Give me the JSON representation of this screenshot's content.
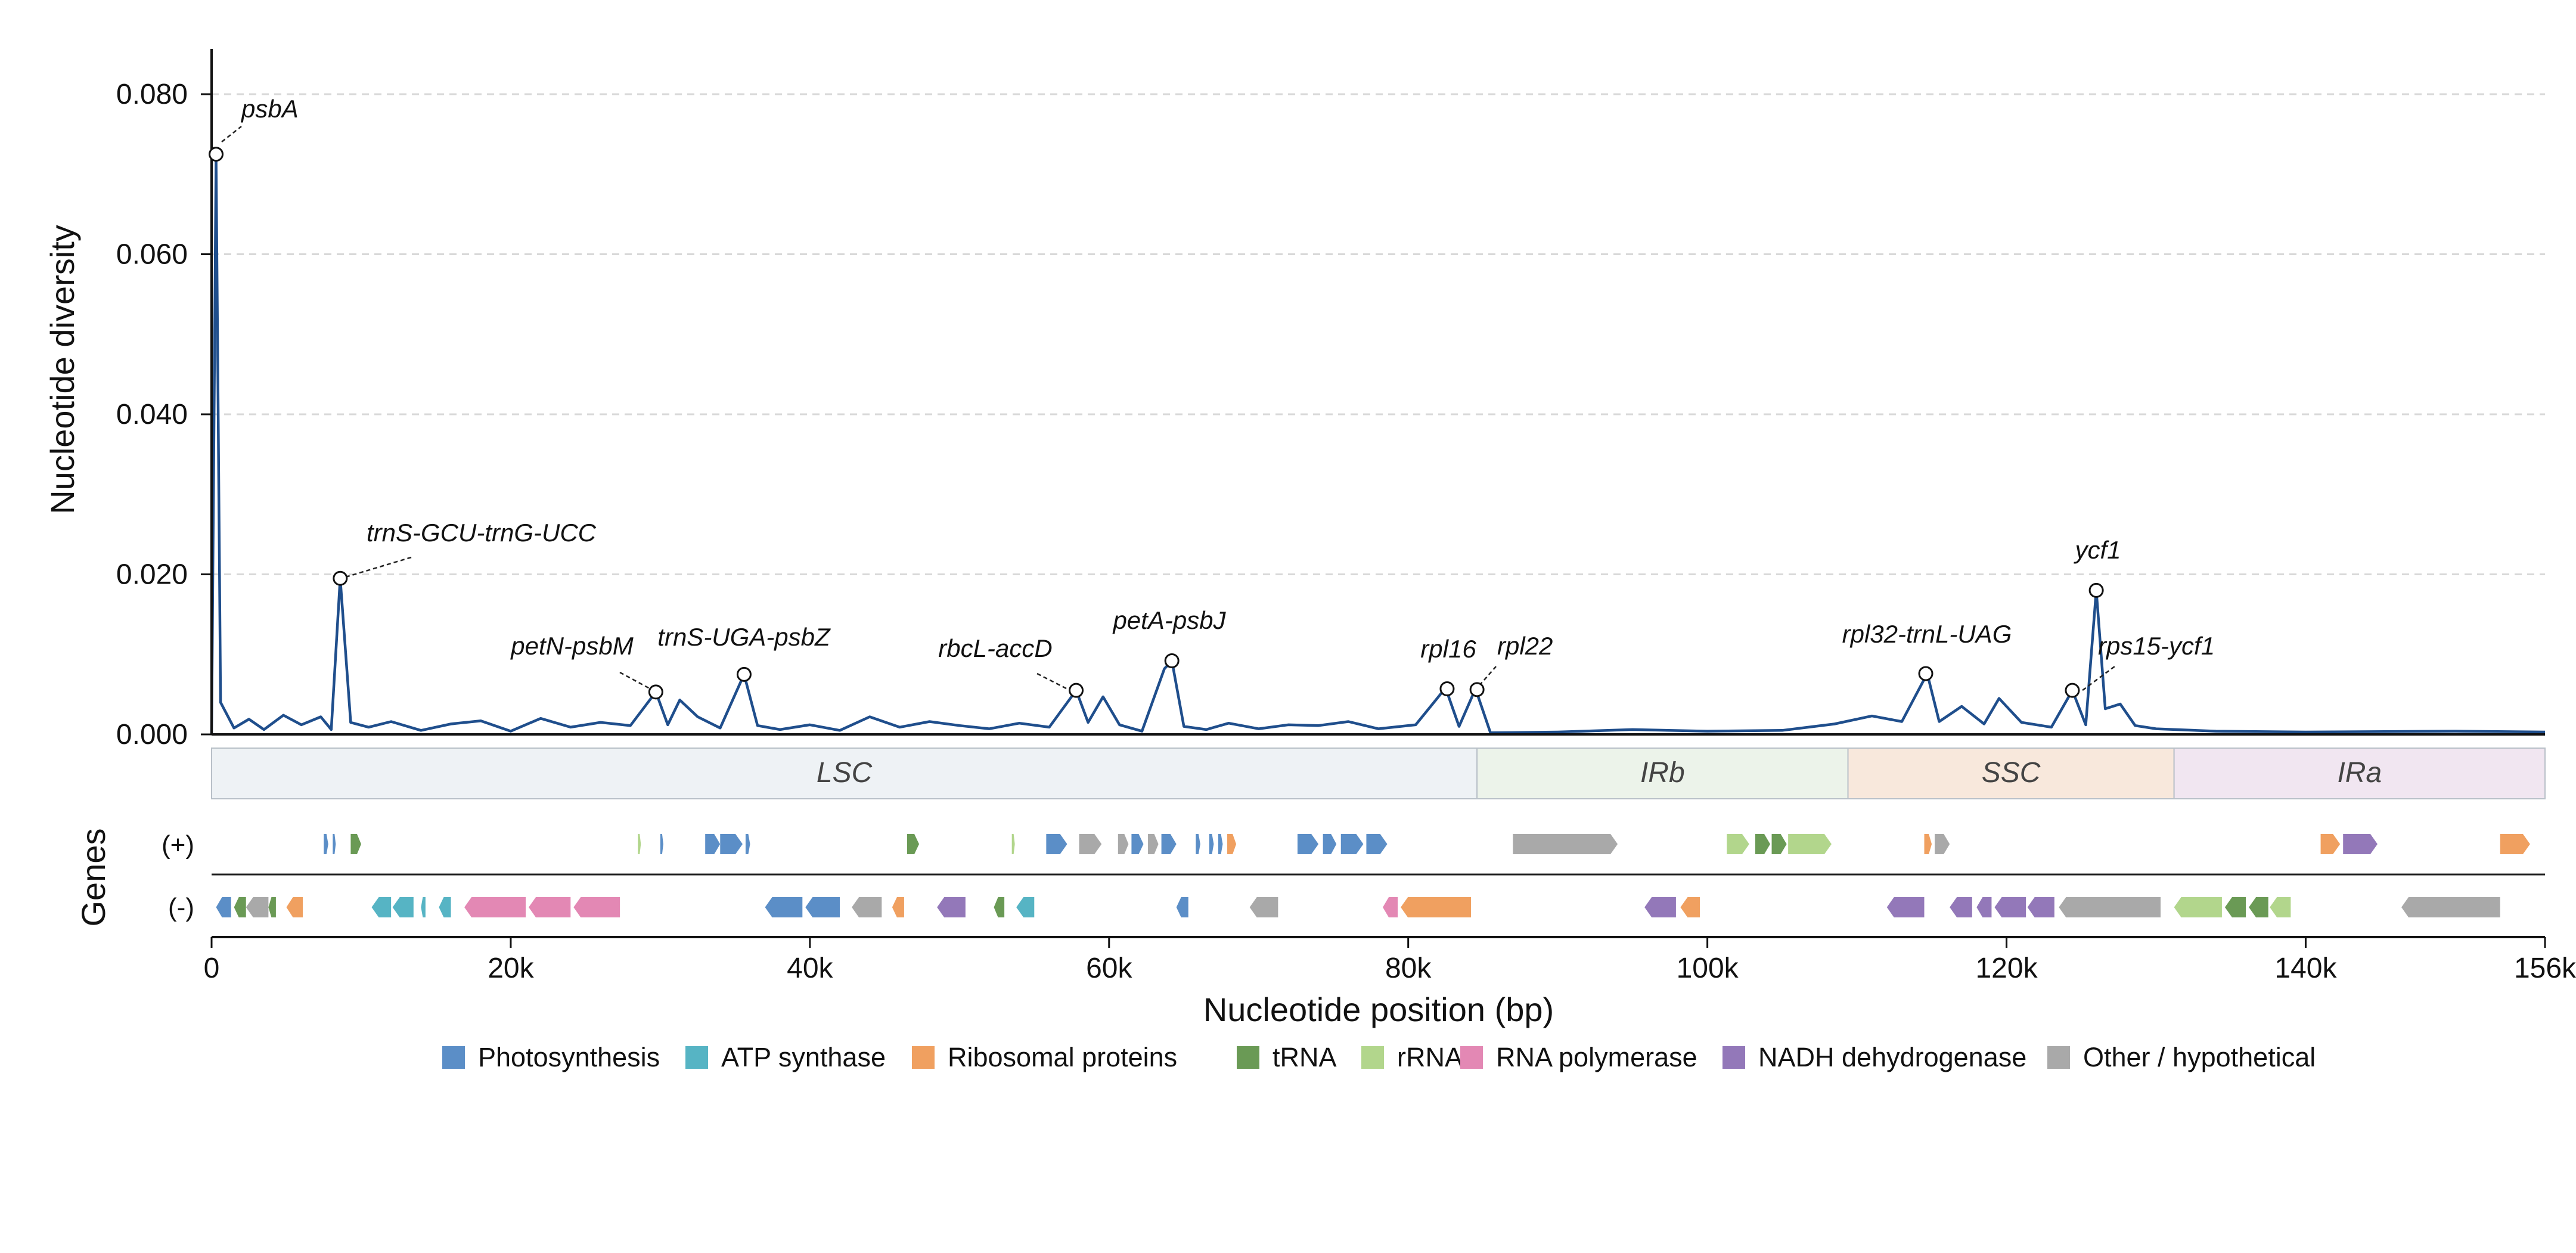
{
  "chart_data": {
    "type": "line",
    "ylabel": "Nucleotide diversity",
    "xlabel": "Nucleotide position (bp)",
    "xlim": [
      0,
      156000
    ],
    "ylim": [
      0,
      0.085
    ],
    "grid": "horizontal dashed",
    "y_ticks": [
      "0.000",
      "0.020",
      "0.040",
      "0.060",
      "0.080"
    ],
    "x_ticks": [
      "0",
      "20k",
      "40k",
      "60k",
      "80k",
      "100k",
      "120k",
      "140k",
      "156k"
    ],
    "x_tick_values": [
      0,
      20000,
      40000,
      60000,
      80000,
      100000,
      120000,
      140000,
      156000
    ],
    "line_color": "#1f4e8c",
    "series_points": [
      [
        0,
        0.0
      ],
      [
        300,
        0.072
      ],
      [
        600,
        0.004
      ],
      [
        1500,
        0.0008
      ],
      [
        2500,
        0.0019
      ],
      [
        3500,
        0.0006
      ],
      [
        4800,
        0.0024
      ],
      [
        6000,
        0.0012
      ],
      [
        7300,
        0.0022
      ],
      [
        8000,
        0.0006
      ],
      [
        8600,
        0.0195
      ],
      [
        9300,
        0.0015
      ],
      [
        10500,
        0.0009
      ],
      [
        12000,
        0.0016
      ],
      [
        14000,
        0.0005
      ],
      [
        16000,
        0.0013
      ],
      [
        18000,
        0.0017
      ],
      [
        20000,
        0.0004
      ],
      [
        22000,
        0.002
      ],
      [
        24000,
        0.0009
      ],
      [
        26000,
        0.0015
      ],
      [
        28000,
        0.0011
      ],
      [
        29700,
        0.0053
      ],
      [
        30500,
        0.0012
      ],
      [
        31300,
        0.0043
      ],
      [
        32500,
        0.0022
      ],
      [
        34000,
        0.0008
      ],
      [
        35600,
        0.0075
      ],
      [
        36500,
        0.0011
      ],
      [
        38000,
        0.0006
      ],
      [
        40000,
        0.0012
      ],
      [
        42000,
        0.0005
      ],
      [
        44000,
        0.0022
      ],
      [
        46000,
        0.0009
      ],
      [
        48000,
        0.0016
      ],
      [
        50000,
        0.0011
      ],
      [
        52000,
        0.0007
      ],
      [
        54000,
        0.0014
      ],
      [
        56000,
        0.0009
      ],
      [
        57800,
        0.0055
      ],
      [
        58600,
        0.0015
      ],
      [
        59600,
        0.0047
      ],
      [
        60700,
        0.0012
      ],
      [
        62200,
        0.0004
      ],
      [
        63700,
        0.0082
      ],
      [
        64200,
        0.0092
      ],
      [
        65000,
        0.001
      ],
      [
        66500,
        0.0006
      ],
      [
        68000,
        0.0014
      ],
      [
        70000,
        0.0007
      ],
      [
        72000,
        0.0012
      ],
      [
        74000,
        0.0011
      ],
      [
        76000,
        0.0016
      ],
      [
        78000,
        0.0007
      ],
      [
        80500,
        0.0012
      ],
      [
        82500,
        0.0058
      ],
      [
        83400,
        0.001
      ],
      [
        84500,
        0.0057
      ],
      [
        85500,
        0.0002
      ],
      [
        90000,
        0.0003
      ],
      [
        95000,
        0.0006
      ],
      [
        100000,
        0.0004
      ],
      [
        105000,
        0.0005
      ],
      [
        108500,
        0.0013
      ],
      [
        111000,
        0.0023
      ],
      [
        113000,
        0.0016
      ],
      [
        114700,
        0.0076
      ],
      [
        115500,
        0.0016
      ],
      [
        117000,
        0.0035
      ],
      [
        118500,
        0.0013
      ],
      [
        119500,
        0.0045
      ],
      [
        121000,
        0.0015
      ],
      [
        123000,
        0.0009
      ],
      [
        124400,
        0.0055
      ],
      [
        125300,
        0.0012
      ],
      [
        126000,
        0.018
      ],
      [
        126600,
        0.0032
      ],
      [
        127600,
        0.0038
      ],
      [
        128600,
        0.0011
      ],
      [
        130000,
        0.0007
      ],
      [
        134000,
        0.0004
      ],
      [
        140000,
        0.0003
      ],
      [
        150000,
        0.0004
      ],
      [
        156000,
        0.0003
      ]
    ],
    "peaks": [
      {
        "label": "psbA",
        "x": 300,
        "y": 0.0725
      },
      {
        "label": "trnS-GCU-trnG-UCC",
        "x": 8600,
        "y": 0.0195
      },
      {
        "label": "petN-psbM",
        "x": 29700,
        "y": 0.0053
      },
      {
        "label": "trnS-UGA-psbZ",
        "x": 35600,
        "y": 0.0075
      },
      {
        "label": "rbcL-accD",
        "x": 57800,
        "y": 0.0055
      },
      {
        "label": "petA-psbJ",
        "x": 64200,
        "y": 0.0092
      },
      {
        "label": "rpl16",
        "x": 82600,
        "y": 0.0057
      },
      {
        "label": "rpl22",
        "x": 84600,
        "y": 0.0056
      },
      {
        "label": "rpl32-trnL-UAG",
        "x": 114600,
        "y": 0.0076
      },
      {
        "label": "ycf1",
        "x": 126000,
        "y": 0.018
      },
      {
        "label": "rps15-ycf1",
        "x": 124400,
        "y": 0.0055
      }
    ],
    "regions": [
      {
        "label": "LSC",
        "start": 0,
        "end": 84600,
        "color": "#eef2f5"
      },
      {
        "label": "IRb",
        "start": 84600,
        "end": 109400,
        "color": "#ecf3ea"
      },
      {
        "label": "SSC",
        "start": 109400,
        "end": 131200,
        "color": "#f8e8dc"
      },
      {
        "label": "IRa",
        "start": 131200,
        "end": 156000,
        "color": "#f1e6f1"
      }
    ],
    "gene_track_label": "Genes",
    "strand_labels": [
      "(+)",
      "(-)"
    ],
    "categories": {
      "Photosynthesis": "#5b8ec7",
      "ATP synthase": "#56b4c4",
      "Ribosomal proteins": "#f0a060",
      "tRNA": "#6a9a55",
      "rRNA": "#b2d68c",
      "RNA polymerase": "#e388b4",
      "NADH dehydrogenase": "#9378b9",
      "Other / hypothetical": "#a9a9a9"
    },
    "genes_plus": [
      {
        "s": 7500,
        "e": 7800,
        "c": "Photosynthesis"
      },
      {
        "s": 8100,
        "e": 8300,
        "c": "Photosynthesis"
      },
      {
        "s": 9300,
        "e": 10000,
        "c": "tRNA"
      },
      {
        "s": 28500,
        "e": 28700,
        "c": "rRNA"
      },
      {
        "s": 30000,
        "e": 30200,
        "c": "Photosynthesis"
      },
      {
        "s": 33000,
        "e": 34000,
        "c": "Photosynthesis"
      },
      {
        "s": 34000,
        "e": 35500,
        "c": "Photosynthesis"
      },
      {
        "s": 35700,
        "e": 36000,
        "c": "Photosynthesis"
      },
      {
        "s": 46500,
        "e": 47300,
        "c": "tRNA"
      },
      {
        "s": 53500,
        "e": 53700,
        "c": "rRNA"
      },
      {
        "s": 55800,
        "e": 57200,
        "c": "Photosynthesis"
      },
      {
        "s": 58000,
        "e": 59500,
        "c": "Other / hypothetical"
      },
      {
        "s": 60600,
        "e": 61300,
        "c": "Other / hypothetical"
      },
      {
        "s": 61500,
        "e": 62300,
        "c": "Photosynthesis"
      },
      {
        "s": 62600,
        "e": 63300,
        "c": "Other / hypothetical"
      },
      {
        "s": 63500,
        "e": 64500,
        "c": "Photosynthesis"
      },
      {
        "s": 65800,
        "e": 66100,
        "c": "Photosynthesis"
      },
      {
        "s": 66700,
        "e": 67000,
        "c": "Photosynthesis"
      },
      {
        "s": 67300,
        "e": 67600,
        "c": "Photosynthesis"
      },
      {
        "s": 67900,
        "e": 68500,
        "c": "Ribosomal proteins"
      },
      {
        "s": 72600,
        "e": 74000,
        "c": "Photosynthesis"
      },
      {
        "s": 74300,
        "e": 75200,
        "c": "Photosynthesis"
      },
      {
        "s": 75500,
        "e": 77000,
        "c": "Photosynthesis"
      },
      {
        "s": 77200,
        "e": 78600,
        "c": "Photosynthesis"
      },
      {
        "s": 87000,
        "e": 94000,
        "c": "Other / hypothetical"
      },
      {
        "s": 101300,
        "e": 102800,
        "c": "rRNA"
      },
      {
        "s": 103200,
        "e": 104200,
        "c": "tRNA"
      },
      {
        "s": 104300,
        "e": 105300,
        "c": "tRNA"
      },
      {
        "s": 105400,
        "e": 108300,
        "c": "rRNA"
      },
      {
        "s": 114500,
        "e": 115000,
        "c": "Ribosomal proteins"
      },
      {
        "s": 115200,
        "e": 116200,
        "c": "Other / hypothetical"
      },
      {
        "s": 141000,
        "e": 142300,
        "c": "Ribosomal proteins"
      },
      {
        "s": 142500,
        "e": 144800,
        "c": "NADH dehydrogenase"
      },
      {
        "s": 153000,
        "e": 155000,
        "c": "Ribosomal proteins"
      }
    ],
    "genes_minus": [
      {
        "s": 300,
        "e": 1300,
        "c": "Photosynthesis"
      },
      {
        "s": 1500,
        "e": 2300,
        "c": "tRNA"
      },
      {
        "s": 2300,
        "e": 3800,
        "c": "Other / hypothetical"
      },
      {
        "s": 3800,
        "e": 4300,
        "c": "tRNA"
      },
      {
        "s": 5000,
        "e": 6100,
        "c": "Ribosomal proteins"
      },
      {
        "s": 10700,
        "e": 12000,
        "c": "ATP synthase"
      },
      {
        "s": 12100,
        "e": 13500,
        "c": "ATP synthase"
      },
      {
        "s": 14000,
        "e": 14300,
        "c": "ATP synthase"
      },
      {
        "s": 15200,
        "e": 16000,
        "c": "ATP synthase"
      },
      {
        "s": 16900,
        "e": 21000,
        "c": "RNA polymerase"
      },
      {
        "s": 21200,
        "e": 24000,
        "c": "RNA polymerase"
      },
      {
        "s": 24200,
        "e": 27300,
        "c": "RNA polymerase"
      },
      {
        "s": 37000,
        "e": 39500,
        "c": "Photosynthesis"
      },
      {
        "s": 39700,
        "e": 42000,
        "c": "Photosynthesis"
      },
      {
        "s": 42800,
        "e": 44800,
        "c": "Other / hypothetical"
      },
      {
        "s": 45500,
        "e": 46300,
        "c": "Ribosomal proteins"
      },
      {
        "s": 48500,
        "e": 50400,
        "c": "NADH dehydrogenase"
      },
      {
        "s": 52300,
        "e": 53000,
        "c": "tRNA"
      },
      {
        "s": 53800,
        "e": 55000,
        "c": "ATP synthase"
      },
      {
        "s": 64500,
        "e": 65300,
        "c": "Photosynthesis"
      },
      {
        "s": 69400,
        "e": 71300,
        "c": "Other / hypothetical"
      },
      {
        "s": 78300,
        "e": 79300,
        "c": "RNA polymerase"
      },
      {
        "s": 79500,
        "e": 84200,
        "c": "Ribosomal proteins"
      },
      {
        "s": 95800,
        "e": 97900,
        "c": "NADH dehydrogenase"
      },
      {
        "s": 98200,
        "e": 99500,
        "c": "Ribosomal proteins"
      },
      {
        "s": 112000,
        "e": 114500,
        "c": "NADH dehydrogenase"
      },
      {
        "s": 116200,
        "e": 117700,
        "c": "NADH dehydrogenase"
      },
      {
        "s": 118000,
        "e": 119000,
        "c": "NADH dehydrogenase"
      },
      {
        "s": 119200,
        "e": 121300,
        "c": "NADH dehydrogenase"
      },
      {
        "s": 121400,
        "e": 123200,
        "c": "NADH dehydrogenase"
      },
      {
        "s": 123500,
        "e": 130300,
        "c": "Other / hypothetical"
      },
      {
        "s": 131200,
        "e": 134400,
        "c": "rRNA"
      },
      {
        "s": 134600,
        "e": 136000,
        "c": "tRNA"
      },
      {
        "s": 136200,
        "e": 137500,
        "c": "tRNA"
      },
      {
        "s": 137600,
        "e": 139000,
        "c": "rRNA"
      },
      {
        "s": 146400,
        "e": 153000,
        "c": "Other / hypothetical"
      }
    ],
    "legend": [
      {
        "label": "Photosynthesis",
        "color": "#5b8ec7"
      },
      {
        "label": "ATP synthase",
        "color": "#56b4c4"
      },
      {
        "label": "Ribosomal proteins",
        "color": "#f0a060"
      },
      {
        "label": "tRNA",
        "color": "#6a9a55"
      },
      {
        "label": "rRNA",
        "color": "#b2d68c"
      },
      {
        "label": "RNA polymerase",
        "color": "#e388b4"
      },
      {
        "label": "NADH dehydrogenase",
        "color": "#9378b9"
      },
      {
        "label": "Other / hypothetical",
        "color": "#a9a9a9"
      }
    ]
  }
}
